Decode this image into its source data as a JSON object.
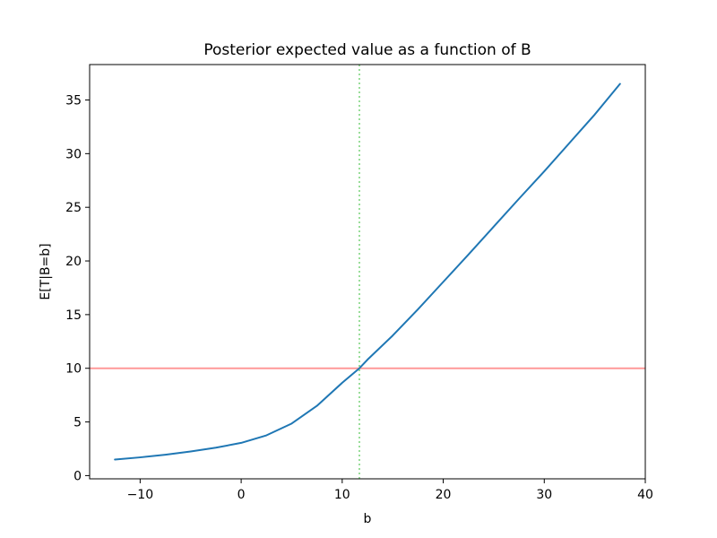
{
  "chart_data": {
    "type": "line",
    "title": "Posterior expected value as a function of B",
    "xlabel": "b",
    "ylabel": "E[T|B=b]",
    "xlim": [
      -15,
      40
    ],
    "ylim": [
      -0.3,
      38.3
    ],
    "xticks": [
      -10,
      0,
      10,
      20,
      30,
      40
    ],
    "xtick_labels": [
      "−10",
      "0",
      "10",
      "20",
      "30",
      "40"
    ],
    "yticks": [
      0,
      5,
      10,
      15,
      20,
      25,
      30,
      35
    ],
    "ytick_labels": [
      "0",
      "5",
      "10",
      "15",
      "20",
      "25",
      "30",
      "35"
    ],
    "grid": false,
    "series": [
      {
        "color": "#1f77b4",
        "x": [
          -12.5,
          -10,
          -7.5,
          -5,
          -2.5,
          0,
          2.5,
          5,
          7.5,
          10,
          11.7,
          12.5,
          15,
          17.5,
          20,
          22.5,
          25,
          27.5,
          30,
          32.5,
          35,
          37.5
        ],
        "y": [
          1.5,
          1.7,
          1.95,
          2.25,
          2.6,
          3.05,
          3.75,
          4.85,
          6.5,
          8.65,
          10.0,
          10.8,
          13.05,
          15.5,
          18.05,
          20.6,
          23.2,
          25.8,
          28.35,
          31.0,
          33.65,
          36.5
        ]
      }
    ],
    "reference_lines": [
      {
        "orientation": "horizontal",
        "value": 10,
        "color": "#ff9999",
        "style": "solid"
      },
      {
        "orientation": "vertical",
        "value": 11.7,
        "color": "#99dd99",
        "style": "dotted"
      }
    ]
  }
}
